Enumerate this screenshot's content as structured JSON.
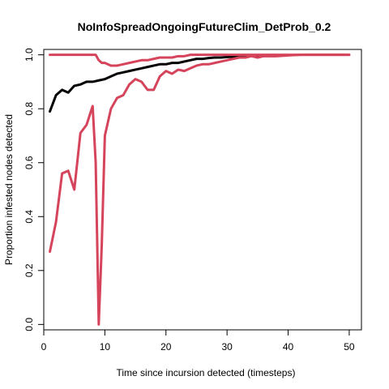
{
  "chart_data": {
    "type": "line",
    "title": "NoInfoSpreadOngoingFutureClim_DetProb_0.2",
    "xlabel": "Time since incursion detected (timesteps)",
    "ylabel": "Proportion infested nodes detected",
    "xlim": [
      0,
      52
    ],
    "ylim": [
      -0.02,
      1.02
    ],
    "xticks": [
      "0",
      "10",
      "20",
      "30",
      "40",
      "50"
    ],
    "yticks": [
      "0.0",
      "0.2",
      "0.4",
      "0.6",
      "0.8",
      "1.0"
    ],
    "grid": false,
    "legend": "none",
    "series": [
      {
        "color": "#000000",
        "x": [
          1,
          2,
          3,
          4,
          5,
          6,
          7,
          8,
          9,
          10,
          11,
          12,
          13,
          14,
          15,
          16,
          17,
          18,
          19,
          20,
          21,
          22,
          23,
          24,
          25,
          26,
          27,
          28,
          29,
          30,
          31,
          32,
          33,
          34,
          35,
          36,
          37
        ],
        "values": [
          0.79,
          0.85,
          0.87,
          0.86,
          0.885,
          0.89,
          0.9,
          0.9,
          0.905,
          0.91,
          0.92,
          0.93,
          0.935,
          0.94,
          0.945,
          0.95,
          0.955,
          0.96,
          0.965,
          0.965,
          0.97,
          0.97,
          0.975,
          0.98,
          0.985,
          0.985,
          0.988,
          0.99,
          0.99,
          0.992,
          0.993,
          0.995,
          0.996,
          0.997,
          0.998,
          0.998,
          0.999
        ]
      },
      {
        "color": "#d6445c",
        "x": [
          1,
          2,
          3,
          4,
          5,
          6,
          7,
          8,
          8.5,
          9,
          9.5,
          10,
          11,
          12,
          13,
          14,
          15,
          16,
          17,
          18,
          19,
          20,
          21,
          22,
          23,
          24,
          25,
          26,
          27,
          28,
          29,
          30,
          31,
          32,
          33,
          34,
          35,
          36,
          38,
          40,
          42,
          44,
          46,
          48,
          50
        ],
        "values": [
          1.0,
          1.0,
          1.0,
          1.0,
          1.0,
          1.0,
          1.0,
          1.0,
          1.0,
          0.98,
          0.97,
          0.97,
          0.96,
          0.96,
          0.965,
          0.97,
          0.975,
          0.98,
          0.98,
          0.985,
          0.99,
          0.99,
          0.99,
          0.995,
          0.995,
          1.0,
          1.0,
          1.0,
          1.0,
          1.0,
          1.0,
          1.0,
          1.0,
          1.0,
          1.0,
          1.0,
          1.0,
          1.0,
          1.0,
          1.0,
          1.0,
          1.0,
          1.0,
          1.0,
          1.0
        ]
      },
      {
        "color": "#d6445c",
        "x": [
          1,
          2,
          3,
          4,
          5,
          6,
          7,
          8,
          8.5,
          9,
          9.5,
          10,
          11,
          12,
          13,
          14,
          15,
          16,
          17,
          18,
          19,
          20,
          21,
          22,
          23,
          24,
          25,
          26,
          27,
          28,
          29,
          30,
          31,
          32,
          33,
          34,
          35,
          36,
          38,
          40,
          42,
          44,
          46,
          48,
          50
        ],
        "values": [
          0.27,
          0.38,
          0.56,
          0.57,
          0.5,
          0.71,
          0.74,
          0.81,
          0.6,
          0.0,
          0.3,
          0.7,
          0.8,
          0.84,
          0.85,
          0.89,
          0.91,
          0.9,
          0.87,
          0.87,
          0.92,
          0.94,
          0.93,
          0.945,
          0.94,
          0.95,
          0.96,
          0.965,
          0.965,
          0.97,
          0.975,
          0.98,
          0.985,
          0.99,
          0.99,
          0.995,
          0.99,
          0.995,
          0.995,
          0.998,
          1.0,
          1.0,
          1.0,
          1.0,
          1.0
        ]
      }
    ]
  }
}
